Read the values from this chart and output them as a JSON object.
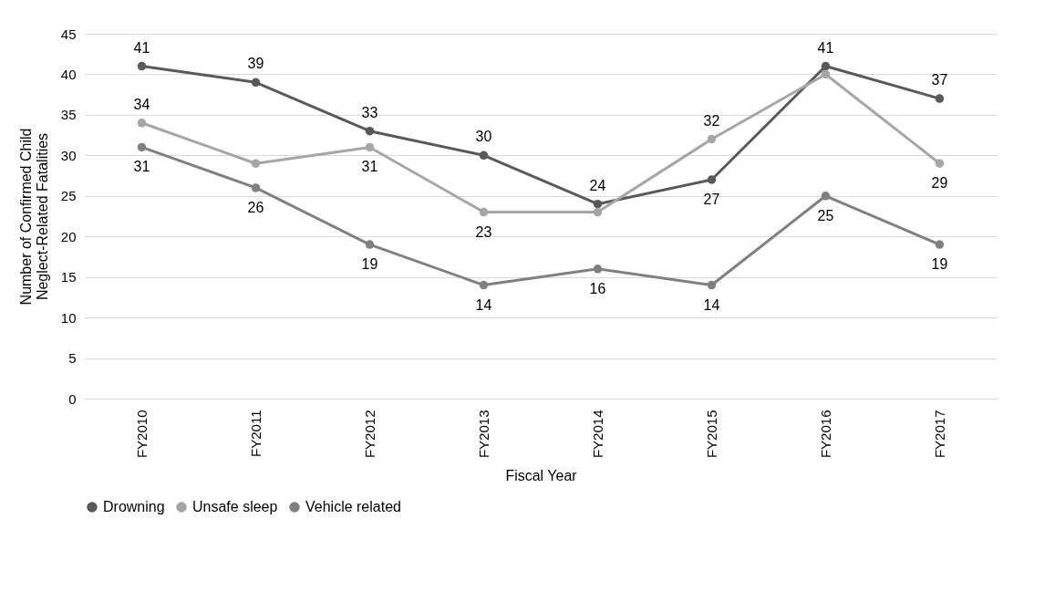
{
  "chart_data": {
    "type": "line",
    "xlabel": "Fiscal Year",
    "ylabel": "Number of Confirmed Child  Neglect-Related Fatalities",
    "categories": [
      "FY2010",
      "FY2011",
      "FY2012",
      "FY2013",
      "FY2014",
      "FY2015",
      "FY2016",
      "FY2017"
    ],
    "series": [
      {
        "name": "Drowning",
        "color": "#595959",
        "values": [
          41,
          39,
          33,
          30,
          24,
          27,
          41,
          37
        ],
        "value_labels": [
          "41",
          "39",
          "33",
          "30",
          "24",
          "27",
          "41",
          "37"
        ]
      },
      {
        "name": "Unsafe sleep",
        "color": "#a6a6a6",
        "values": [
          34,
          29,
          31,
          23,
          23,
          32,
          40,
          29
        ],
        "value_labels": [
          "34",
          null,
          "31",
          "23",
          null,
          "32",
          null,
          "29"
        ]
      },
      {
        "name": "Vehicle related",
        "color": "#808080",
        "values": [
          31,
          26,
          19,
          14,
          16,
          14,
          25,
          19
        ],
        "value_labels": [
          "31",
          "26",
          "19",
          "14",
          "16",
          "14",
          "25",
          "19"
        ]
      }
    ],
    "ylim": [
      0,
      45
    ],
    "yticks": [
      0,
      5,
      10,
      15,
      20,
      25,
      30,
      35,
      40,
      45
    ],
    "grid": "y",
    "legend": "bottom",
    "marker": "circle"
  }
}
